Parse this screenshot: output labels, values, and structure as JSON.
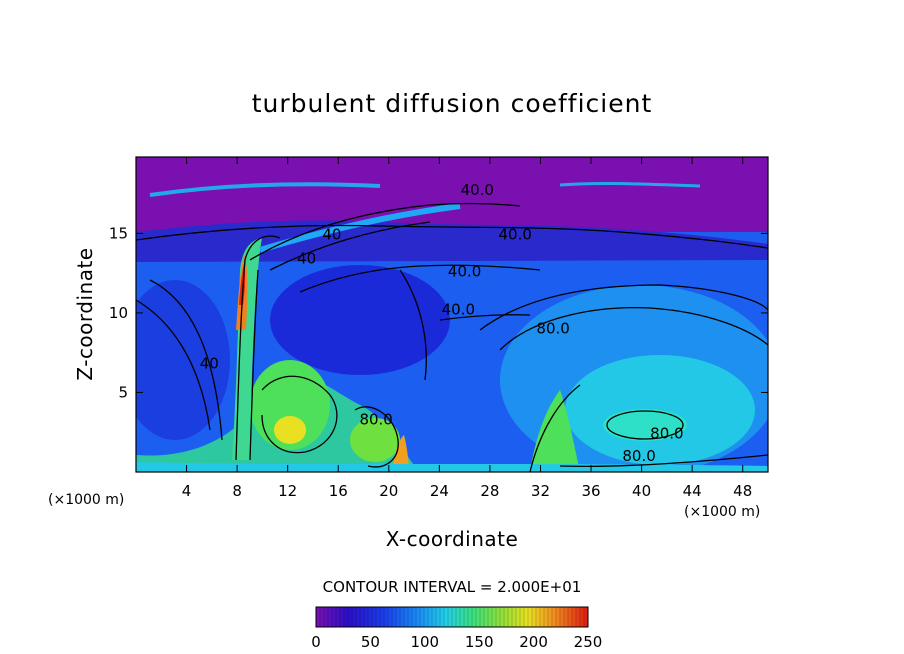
{
  "chart_data": {
    "type": "heatmap",
    "title": "turbulent diffusion coefficient",
    "xlabel": "X-coordinate",
    "ylabel": "Z-coordinate",
    "x_unit_left": "(×1000 m)",
    "x_unit_right": "(×1000 m)",
    "xlim": [
      0,
      50
    ],
    "ylim": [
      0,
      19.8
    ],
    "x_ticks": [
      4,
      8,
      12,
      16,
      20,
      24,
      28,
      32,
      36,
      40,
      44,
      48
    ],
    "y_ticks": [
      5,
      10,
      15
    ],
    "contour_interval_text": "CONTOUR INTERVAL = 2.000E+01",
    "colorbar": {
      "min": 0,
      "max": 250,
      "ticks": [
        0,
        50,
        100,
        150,
        200,
        250
      ]
    },
    "contour_labels": [
      {
        "text": "40.0",
        "x": 27.0,
        "y": 17.4
      },
      {
        "text": "40.0",
        "x": 30.0,
        "y": 14.6
      },
      {
        "text": "40.0",
        "x": 26.0,
        "y": 12.3
      },
      {
        "text": "40.0",
        "x": 25.5,
        "y": 9.9
      },
      {
        "text": "40",
        "x": 15.5,
        "y": 14.6
      },
      {
        "text": "40",
        "x": 13.5,
        "y": 13.1
      },
      {
        "text": "40",
        "x": 5.8,
        "y": 6.5
      },
      {
        "text": "80.0",
        "x": 33.0,
        "y": 8.7
      },
      {
        "text": "80.0",
        "x": 42.0,
        "y": 2.1
      },
      {
        "text": "80.0",
        "x": 39.8,
        "y": 0.7
      },
      {
        "text": "80.0",
        "x": 19.0,
        "y": 3.0
      }
    ]
  },
  "colors": {
    "top_band": "#7a10b0",
    "deep_blue": "#1a1ad0",
    "mid_blue": "#1c5ef0",
    "light_blue": "#1ea8f5",
    "cyan": "#22d6e0",
    "green": "#4ee05a",
    "yellow": "#f0e020",
    "orange": "#f08020",
    "red": "#e02010",
    "contour_line": "#000000"
  }
}
